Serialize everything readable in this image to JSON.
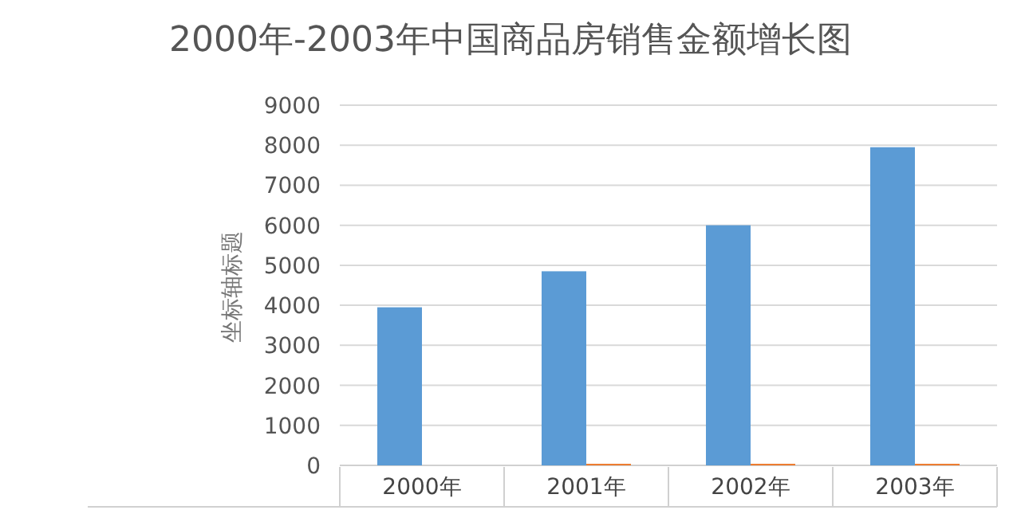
{
  "chart_data": {
    "type": "bar",
    "title": "2000年-2003年中国商品房销售金额增长图",
    "ylabel": "坐标轴标题",
    "categories": [
      "2000年",
      "2001年",
      "2002年",
      "2003年"
    ],
    "series": [
      {
        "color": "#5b9bd5",
        "values": [
          3950,
          4850,
          6000,
          7950
        ]
      },
      {
        "color": "#ed7d31",
        "values": [
          null,
          40,
          40,
          40
        ]
      }
    ],
    "ylim": [
      0,
      9000
    ],
    "yticks": [
      0,
      1000,
      2000,
      3000,
      4000,
      5000,
      6000,
      7000,
      8000,
      9000
    ],
    "grid": "y"
  }
}
